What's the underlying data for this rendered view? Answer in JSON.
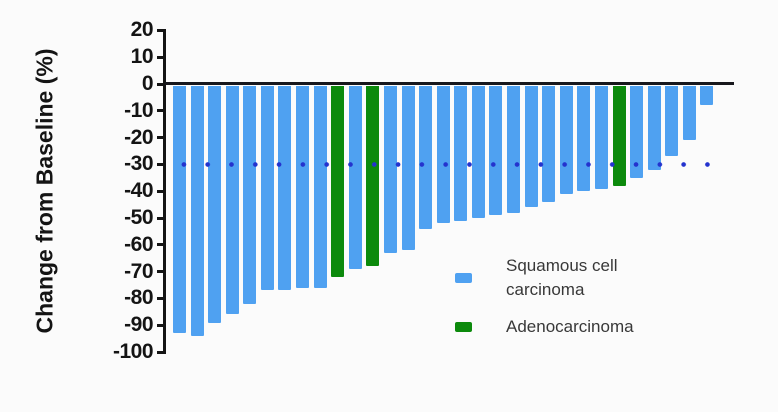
{
  "figure": {
    "y_axis_title": "Change from Baseline (%)",
    "y_ticks": [
      20,
      10,
      0,
      -10,
      -20,
      -30,
      -40,
      -50,
      -60,
      -70,
      -80,
      -90,
      -100
    ]
  },
  "legend": {
    "squamous": {
      "line1": "Squamous cell",
      "line2": "carcinoma"
    },
    "adeno": {
      "label": "Adenocarcinoma"
    }
  },
  "colors": {
    "squamous": "#4FA1F1",
    "adenocarcinoma": "#0C8A0C",
    "reference_dots": "#2433CE",
    "axis": "#141414"
  },
  "chart_data": {
    "type": "bar",
    "title": "",
    "xlabel": "",
    "ylabel": "Change from Baseline (%)",
    "ylim": [
      -100,
      20
    ],
    "y_tick_step": 10,
    "grid": false,
    "x_axis_labels": "none (one bar per patient, waterfall plot)",
    "reference_line_y": -30,
    "legend_position": "inside lower-right",
    "series_legend": [
      "Squamous cell carcinoma",
      "Adenocarcinoma"
    ],
    "bars": [
      {
        "value": -93,
        "group": "Squamous cell carcinoma"
      },
      {
        "value": -94,
        "group": "Squamous cell carcinoma"
      },
      {
        "value": -89,
        "group": "Squamous cell carcinoma"
      },
      {
        "value": -86,
        "group": "Squamous cell carcinoma"
      },
      {
        "value": -82,
        "group": "Squamous cell carcinoma"
      },
      {
        "value": -77,
        "group": "Squamous cell carcinoma"
      },
      {
        "value": -77,
        "group": "Squamous cell carcinoma"
      },
      {
        "value": -76,
        "group": "Squamous cell carcinoma"
      },
      {
        "value": -76,
        "group": "Squamous cell carcinoma"
      },
      {
        "value": -72,
        "group": "Adenocarcinoma"
      },
      {
        "value": -69,
        "group": "Squamous cell carcinoma"
      },
      {
        "value": -68,
        "group": "Adenocarcinoma"
      },
      {
        "value": -63,
        "group": "Squamous cell carcinoma"
      },
      {
        "value": -62,
        "group": "Squamous cell carcinoma"
      },
      {
        "value": -54,
        "group": "Squamous cell carcinoma"
      },
      {
        "value": -52,
        "group": "Squamous cell carcinoma"
      },
      {
        "value": -51,
        "group": "Squamous cell carcinoma"
      },
      {
        "value": -50,
        "group": "Squamous cell carcinoma"
      },
      {
        "value": -49,
        "group": "Squamous cell carcinoma"
      },
      {
        "value": -48,
        "group": "Squamous cell carcinoma"
      },
      {
        "value": -46,
        "group": "Squamous cell carcinoma"
      },
      {
        "value": -44,
        "group": "Squamous cell carcinoma"
      },
      {
        "value": -41,
        "group": "Squamous cell carcinoma"
      },
      {
        "value": -40,
        "group": "Squamous cell carcinoma"
      },
      {
        "value": -39,
        "group": "Squamous cell carcinoma"
      },
      {
        "value": -38,
        "group": "Adenocarcinoma"
      },
      {
        "value": -35,
        "group": "Squamous cell carcinoma"
      },
      {
        "value": -32,
        "group": "Squamous cell carcinoma"
      },
      {
        "value": -27,
        "group": "Squamous cell carcinoma"
      },
      {
        "value": -21,
        "group": "Squamous cell carcinoma"
      },
      {
        "value": -8,
        "group": "Squamous cell carcinoma"
      }
    ]
  }
}
